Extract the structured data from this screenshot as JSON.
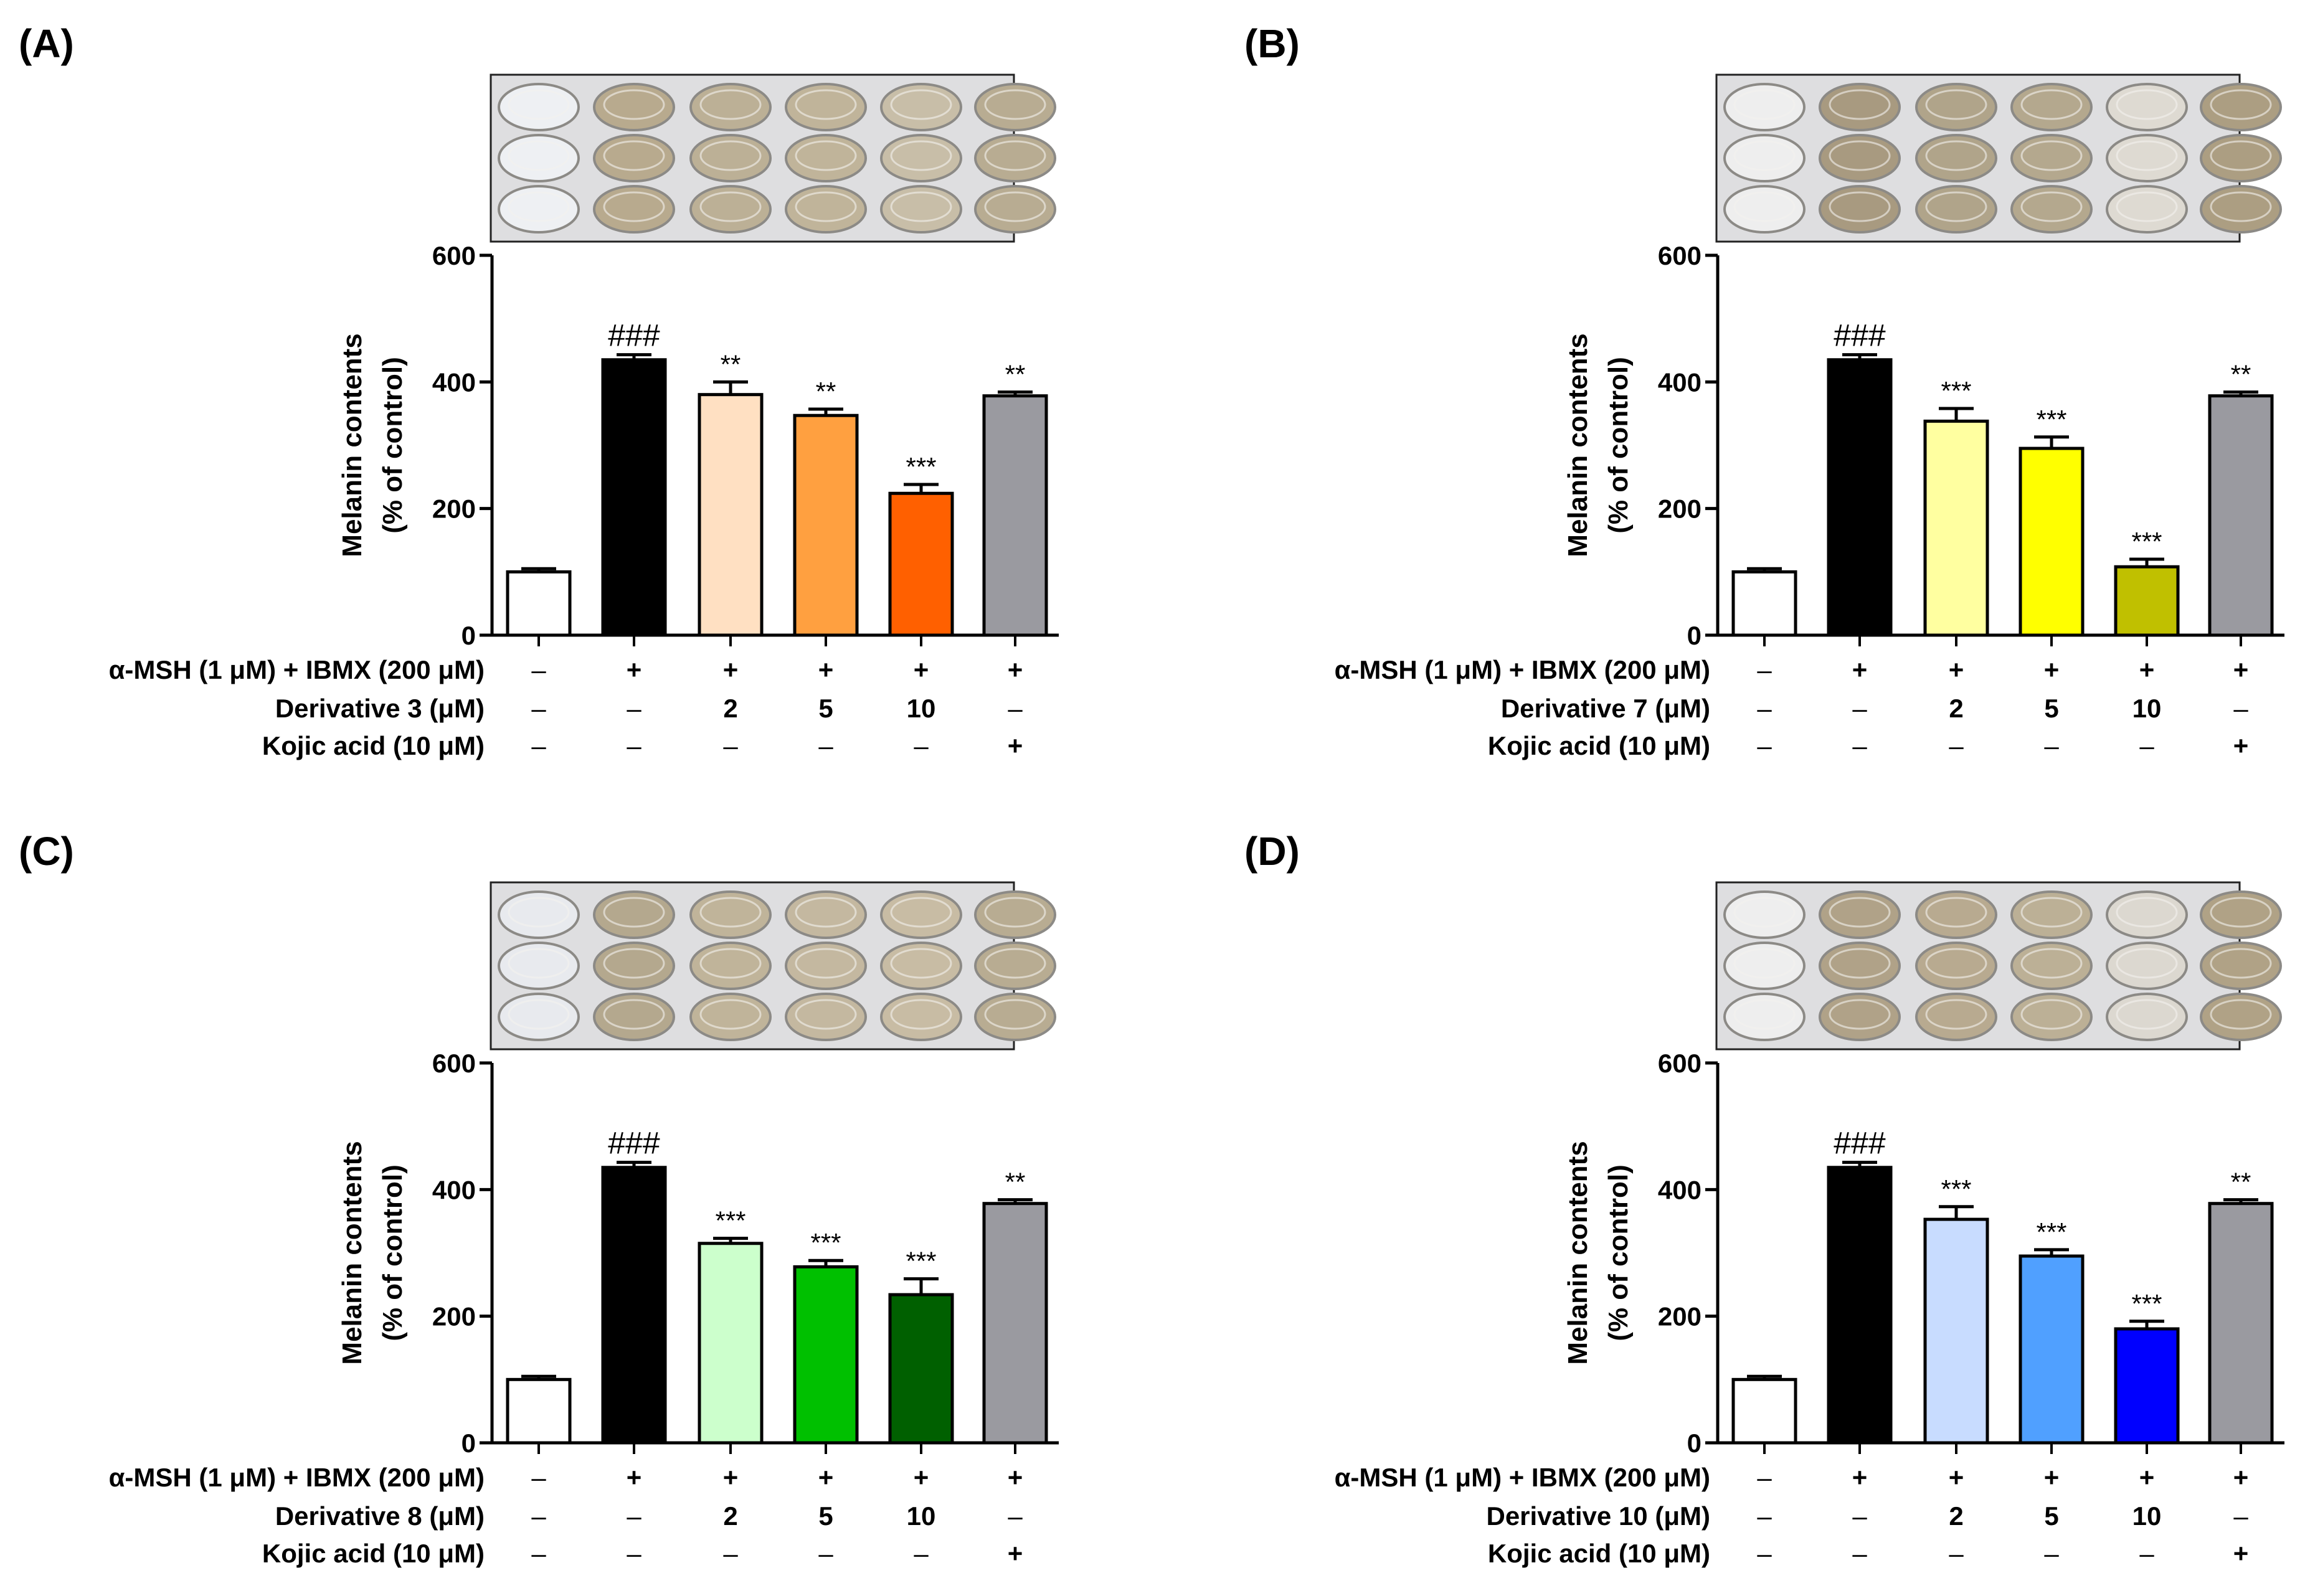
{
  "chart_data": [
    {
      "type": "bar",
      "panel_label": "(A)",
      "ylabel_lines": [
        "Melanin contents",
        "(% of control)"
      ],
      "ylim": [
        0,
        600
      ],
      "yticks": [
        "0",
        "200",
        "400",
        "600"
      ],
      "values": [
        100,
        435,
        380,
        347,
        224,
        378
      ],
      "errors": [
        5,
        8,
        20,
        10,
        14,
        6
      ],
      "colors": [
        "#ffffff",
        "#000000",
        "#ffe0c2",
        "#ffa040",
        "#ff6000",
        "#9a9aa0"
      ],
      "significance": [
        "",
        "###",
        "**",
        "**",
        "***",
        "**"
      ],
      "conditions": [
        {
          "label": "α-MSH (1 μM) + IBMX (200 μM)",
          "values": [
            "–",
            "+",
            "+",
            "+",
            "+",
            "+"
          ]
        },
        {
          "label": "Derivative 3 (μM)",
          "values": [
            "–",
            "–",
            "2",
            "5",
            "10",
            "–"
          ]
        },
        {
          "label": "Kojic acid (10 μM)",
          "values": [
            "–",
            "–",
            "–",
            "–",
            "–",
            "+"
          ]
        }
      ],
      "well_colors": [
        "#eef0f3",
        "#b8aa8e",
        "#bcb096",
        "#c0b49a",
        "#c8bea8",
        "#b8ac92"
      ]
    },
    {
      "type": "bar",
      "panel_label": "(B)",
      "ylabel_lines": [
        "Melanin contents",
        "(% of control)"
      ],
      "ylim": [
        0,
        600
      ],
      "yticks": [
        "0",
        "200",
        "400",
        "600"
      ],
      "values": [
        100,
        435,
        338,
        295,
        108,
        378
      ],
      "errors": [
        5,
        8,
        20,
        18,
        12,
        6
      ],
      "colors": [
        "#ffffff",
        "#000000",
        "#ffffa0",
        "#ffff00",
        "#c0c000",
        "#9a9aa0"
      ],
      "significance": [
        "",
        "###",
        "***",
        "***",
        "***",
        "**"
      ],
      "conditions": [
        {
          "label": "α-MSH (1 μM) + IBMX (200 μM)",
          "values": [
            "–",
            "+",
            "+",
            "+",
            "+",
            "+"
          ]
        },
        {
          "label": "Derivative 7 (μM)",
          "values": [
            "–",
            "–",
            "2",
            "5",
            "10",
            "–"
          ]
        },
        {
          "label": "Kojic acid (10 μM)",
          "values": [
            "–",
            "–",
            "–",
            "–",
            "–",
            "+"
          ]
        }
      ],
      "well_colors": [
        "#eeeeee",
        "#a89a80",
        "#b0a48a",
        "#b4a88e",
        "#dedad2",
        "#ac9e82"
      ]
    },
    {
      "type": "bar",
      "panel_label": "(C)",
      "ylabel_lines": [
        "Melanin contents",
        "(% of control)"
      ],
      "ylim": [
        0,
        600
      ],
      "yticks": [
        "0",
        "200",
        "400",
        "600"
      ],
      "values": [
        100,
        435,
        315,
        278,
        234,
        378
      ],
      "errors": [
        5,
        8,
        8,
        10,
        25,
        6
      ],
      "colors": [
        "#ffffff",
        "#000000",
        "#ccffcc",
        "#00c000",
        "#006000",
        "#9a9aa0"
      ],
      "significance": [
        "",
        "###",
        "***",
        "***",
        "***",
        "**"
      ],
      "conditions": [
        {
          "label": "α-MSH (1 μM) + IBMX (200 μM)",
          "values": [
            "–",
            "+",
            "+",
            "+",
            "+",
            "+"
          ]
        },
        {
          "label": "Derivative 8 (μM)",
          "values": [
            "–",
            "–",
            "2",
            "5",
            "10",
            "–"
          ]
        },
        {
          "label": "Kojic acid (10 μM)",
          "values": [
            "–",
            "–",
            "–",
            "–",
            "–",
            "+"
          ]
        }
      ],
      "well_colors": [
        "#e8eaee",
        "#b4a88e",
        "#c0b49a",
        "#c4b8a0",
        "#c8bca4",
        "#b8ac92"
      ]
    },
    {
      "type": "bar",
      "panel_label": "(D)",
      "ylabel_lines": [
        "Melanin contents",
        "(% of control)"
      ],
      "ylim": [
        0,
        600
      ],
      "yticks": [
        "0",
        "200",
        "400",
        "600"
      ],
      "values": [
        100,
        435,
        353,
        295,
        180,
        378
      ],
      "errors": [
        5,
        8,
        20,
        10,
        12,
        6
      ],
      "colors": [
        "#ffffff",
        "#000000",
        "#c8dcff",
        "#50a0ff",
        "#0000ff",
        "#9a9aa0"
      ],
      "significance": [
        "",
        "###",
        "***",
        "***",
        "***",
        "**"
      ],
      "conditions": [
        {
          "label": "α-MSH (1 μM) + IBMX (200 μM)",
          "values": [
            "–",
            "+",
            "+",
            "+",
            "+",
            "+"
          ]
        },
        {
          "label": "Derivative 10 (μM)",
          "values": [
            "–",
            "–",
            "2",
            "5",
            "10",
            "–"
          ]
        },
        {
          "label": "Kojic acid (10 μM)",
          "values": [
            "–",
            "–",
            "–",
            "–",
            "–",
            "+"
          ]
        }
      ],
      "well_colors": [
        "#eeeeee",
        "#b0a288",
        "#b8aa90",
        "#bcb096",
        "#dcd8d0",
        "#b0a286"
      ]
    }
  ]
}
